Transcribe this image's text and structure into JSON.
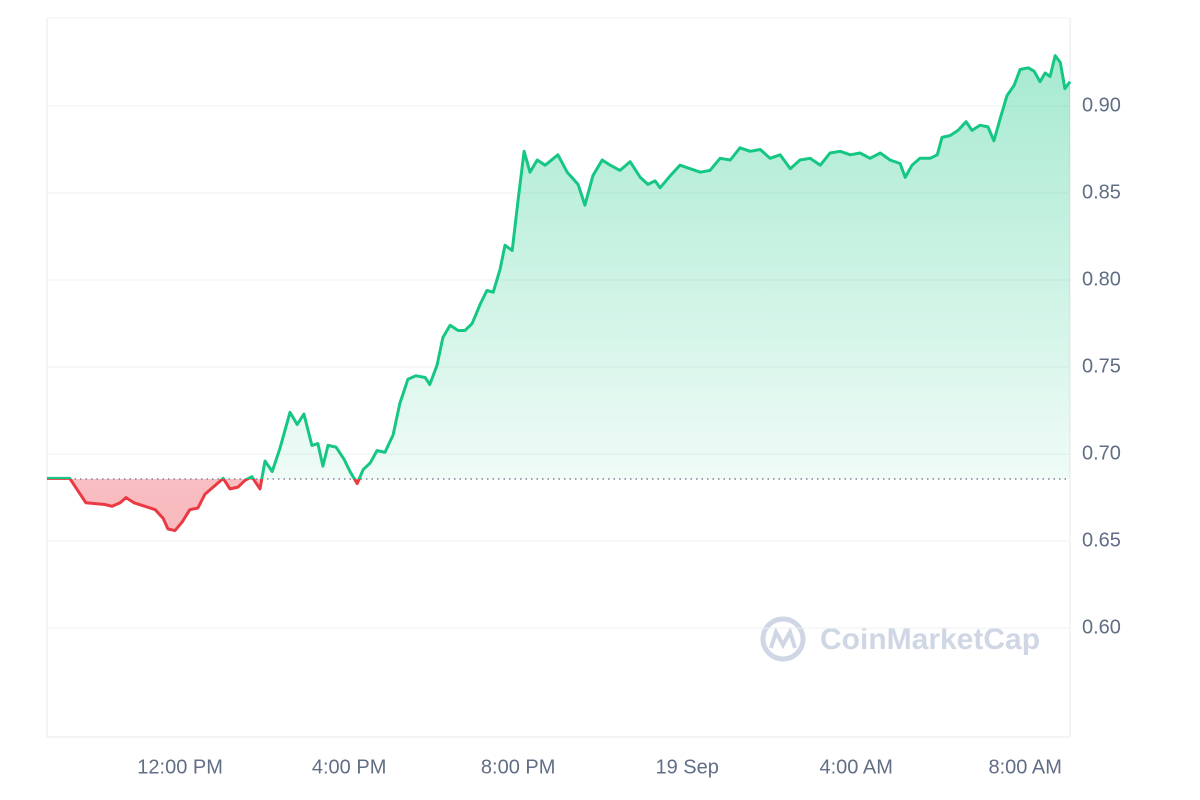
{
  "chart_data": {
    "type": "line",
    "watermark": "CoinMarketCap",
    "x": [
      8.85,
      9.21,
      9.39,
      9.58,
      9.77,
      10.22,
      10.39,
      10.58,
      10.72,
      10.91,
      11.17,
      11.41,
      11.6,
      11.71,
      11.88,
      12.05,
      12.23,
      12.42,
      12.59,
      12.83,
      13.02,
      13.18,
      13.37,
      13.54,
      13.7,
      13.89,
      14.01,
      14.18,
      14.36,
      14.6,
      14.77,
      14.93,
      15.12,
      15.26,
      15.38,
      15.5,
      15.69,
      15.88,
      16.02,
      16.19,
      16.33,
      16.5,
      16.66,
      16.85,
      17.04,
      17.2,
      17.39,
      17.58,
      17.8,
      17.91,
      18.08,
      18.22,
      18.39,
      18.58,
      18.74,
      18.91,
      19.1,
      19.26,
      19.41,
      19.57,
      19.69,
      19.86,
      20.0,
      20.14,
      20.28,
      20.45,
      20.64,
      20.94,
      21.16,
      21.42,
      21.58,
      21.77,
      21.99,
      22.18,
      22.41,
      22.65,
      22.89,
      23.07,
      23.24,
      23.36,
      23.6,
      23.83,
      24.07,
      24.31,
      24.54,
      24.78,
      25.02,
      25.25,
      25.49,
      25.73,
      25.96,
      26.2,
      26.44,
      26.67,
      26.91,
      27.15,
      27.38,
      27.62,
      27.86,
      28.09,
      28.33,
      28.57,
      28.8,
      29.04,
      29.16,
      29.32,
      29.51,
      29.75,
      29.92,
      30.03,
      30.22,
      30.41,
      30.6,
      30.74,
      30.93,
      31.12,
      31.26,
      31.41,
      31.57,
      31.74,
      31.88,
      32.07,
      32.21,
      32.35,
      32.47,
      32.59,
      32.71,
      32.83,
      32.94,
      33.06
    ],
    "values": [
      0.686,
      0.686,
      0.686,
      0.679,
      0.672,
      0.671,
      0.67,
      0.672,
      0.675,
      0.672,
      0.67,
      0.668,
      0.663,
      0.657,
      0.656,
      0.661,
      0.668,
      0.669,
      0.677,
      0.682,
      0.686,
      0.68,
      0.681,
      0.685,
      0.687,
      0.68,
      0.696,
      0.69,
      0.703,
      0.724,
      0.717,
      0.723,
      0.705,
      0.706,
      0.693,
      0.705,
      0.704,
      0.697,
      0.69,
      0.683,
      0.691,
      0.695,
      0.702,
      0.701,
      0.711,
      0.729,
      0.743,
      0.745,
      0.744,
      0.74,
      0.751,
      0.767,
      0.774,
      0.771,
      0.771,
      0.775,
      0.786,
      0.794,
      0.793,
      0.806,
      0.82,
      0.817,
      0.846,
      0.874,
      0.862,
      0.869,
      0.866,
      0.872,
      0.862,
      0.855,
      0.843,
      0.86,
      0.869,
      0.866,
      0.863,
      0.868,
      0.859,
      0.855,
      0.857,
      0.853,
      0.86,
      0.866,
      0.864,
      0.862,
      0.863,
      0.87,
      0.869,
      0.876,
      0.874,
      0.875,
      0.87,
      0.872,
      0.864,
      0.869,
      0.87,
      0.866,
      0.873,
      0.874,
      0.872,
      0.873,
      0.87,
      0.873,
      0.869,
      0.867,
      0.859,
      0.866,
      0.87,
      0.87,
      0.872,
      0.882,
      0.883,
      0.886,
      0.891,
      0.886,
      0.889,
      0.888,
      0.88,
      0.893,
      0.906,
      0.912,
      0.921,
      0.922,
      0.92,
      0.914,
      0.919,
      0.917,
      0.929,
      0.925,
      0.91,
      0.914
    ],
    "baseline": 0.6857,
    "color": "#16c784",
    "negative_color": "#ea3943",
    "xlim": [
      8.85,
      33.06
    ],
    "xticks": [
      {
        "value": 12,
        "label": "12:00 PM"
      },
      {
        "value": 16,
        "label": "4:00 PM"
      },
      {
        "value": 20,
        "label": "8:00 PM"
      },
      {
        "value": 24,
        "label": "19 Sep"
      },
      {
        "value": 28,
        "label": "4:00 AM"
      },
      {
        "value": 32,
        "label": "8:00 AM"
      }
    ],
    "ylim": [
      0.5374,
      0.9506
    ],
    "yticks": [
      {
        "value": 0.6,
        "label": "0.60"
      },
      {
        "value": 0.65,
        "label": "0.65"
      },
      {
        "value": 0.7,
        "label": "0.70"
      },
      {
        "value": 0.75,
        "label": "0.75"
      },
      {
        "value": 0.8,
        "label": "0.80"
      },
      {
        "value": 0.85,
        "label": "0.85"
      },
      {
        "value": 0.9,
        "label": "0.90"
      }
    ],
    "grid": true
  }
}
